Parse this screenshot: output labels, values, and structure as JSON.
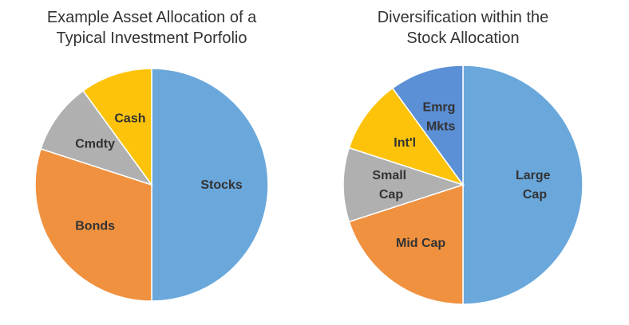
{
  "chart_data": [
    {
      "type": "pie",
      "title": [
        "Example Asset Allocation of a",
        "Typical Investment Porfolio"
      ],
      "categories": [
        "Stocks",
        "Bonds",
        "Cmdty",
        "Cash"
      ],
      "values": [
        50,
        30,
        10,
        10
      ],
      "colors": [
        "#6aa8dc",
        "#f0913f",
        "#b0b0b0",
        "#fcc30a"
      ]
    },
    {
      "type": "pie",
      "title": [
        "Diversification within the",
        "Stock Allocation"
      ],
      "categories": [
        "Large\nCap",
        "Mid Cap",
        "Small\nCap",
        "Int'l",
        "Emrg\nMkts"
      ],
      "values": [
        50,
        20,
        10,
        10,
        10
      ],
      "colors": [
        "#6aa8dc",
        "#f0913f",
        "#b0b0b0",
        "#fcc30a",
        "#5b8fd6"
      ]
    }
  ]
}
